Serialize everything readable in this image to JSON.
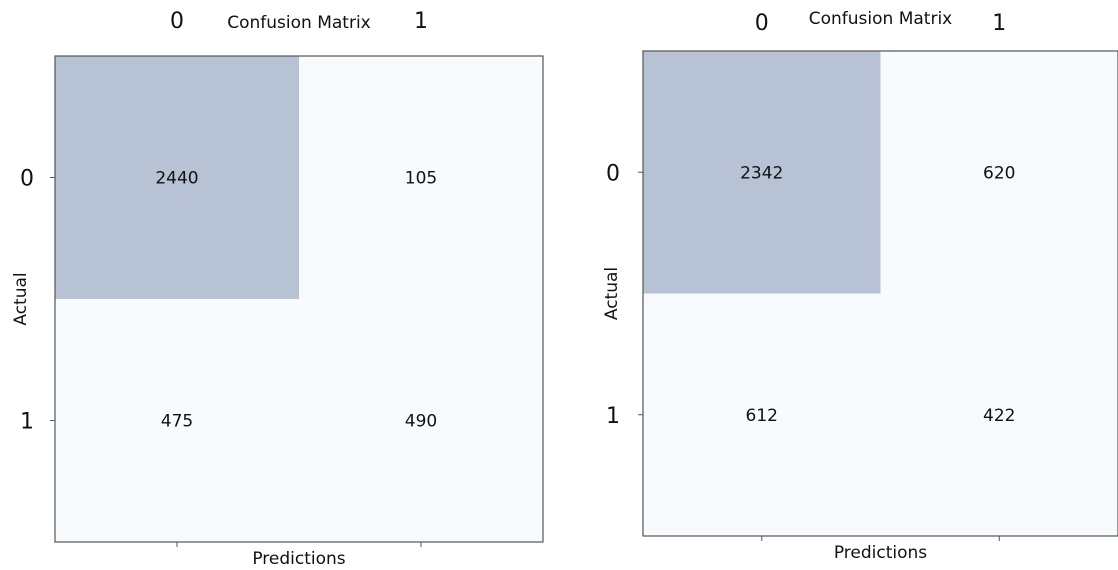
{
  "colors": {
    "high_cell": "#b7c2d4",
    "low_cell": "#f8fbfd",
    "frame": "#555555"
  },
  "chart_data": [
    {
      "type": "heatmap",
      "title": "Confusion Matrix",
      "xlabel": "Predictions",
      "ylabel": "Actual",
      "x_ticks": [
        "0",
        "1"
      ],
      "y_ticks": [
        "0",
        "1"
      ],
      "matrix": [
        [
          2440,
          105
        ],
        [
          475,
          490
        ]
      ],
      "labels": [
        [
          "2440",
          "105"
        ],
        [
          "475",
          "490"
        ]
      ]
    },
    {
      "type": "heatmap",
      "title": "Confusion Matrix",
      "xlabel": "Predictions",
      "ylabel": "Actual",
      "x_ticks": [
        "0",
        "1"
      ],
      "y_ticks": [
        "0",
        "1"
      ],
      "matrix": [
        [
          2342,
          620
        ],
        [
          612,
          422
        ]
      ],
      "labels": [
        [
          "2342",
          "620"
        ],
        [
          "612",
          "422"
        ]
      ]
    }
  ]
}
